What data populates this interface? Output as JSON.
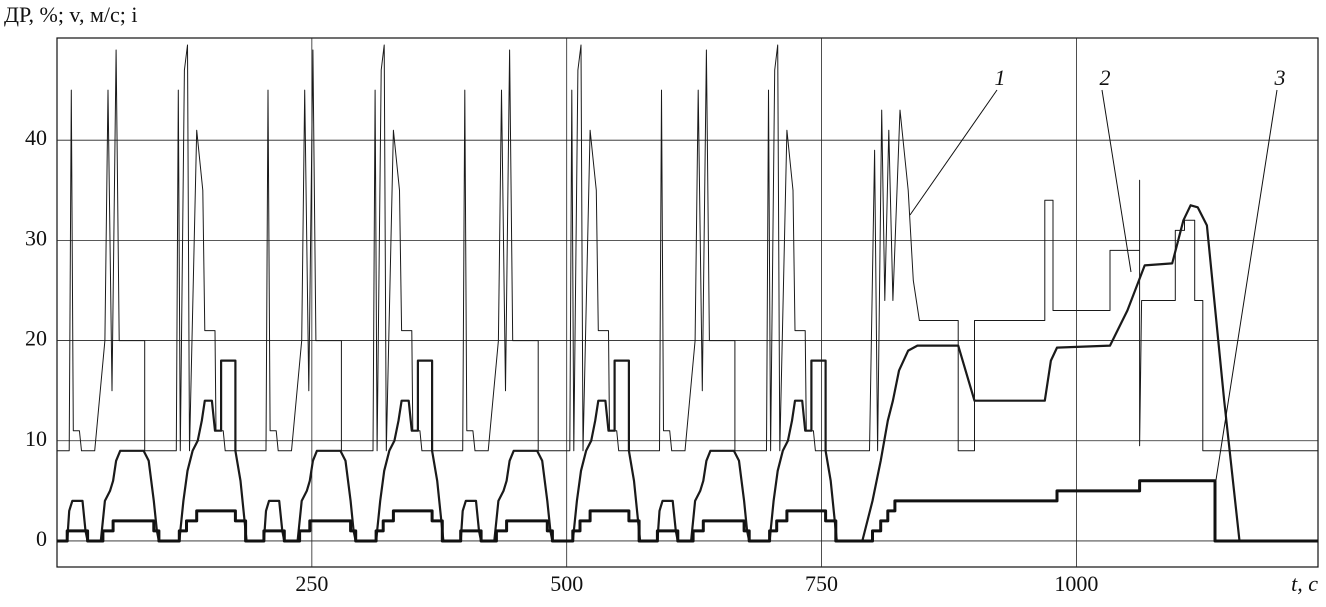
{
  "chart_data": {
    "type": "line",
    "y_label": "ДР, %; v, м/с; i",
    "x_label": "t, с",
    "xlim": [
      0,
      1237
    ],
    "ylim": [
      -2.6,
      50.2
    ],
    "xticks": [
      250,
      500,
      750,
      1000
    ],
    "yticks": [
      0,
      10,
      20,
      30,
      40
    ],
    "grid": true,
    "series": [
      {
        "name": "1",
        "color": "#1a1a1a",
        "x": [
          0,
          12,
          14,
          16,
          22,
          24,
          37,
          47,
          50,
          54,
          58,
          61,
          86,
          86,
          117,
          119,
          121,
          125,
          128,
          130,
          137,
          143,
          145,
          155,
          156,
          163,
          165,
          193,
          205,
          207,
          209,
          215,
          217,
          230,
          240,
          243,
          247,
          251,
          254,
          279,
          279,
          310,
          312,
          314,
          318,
          321,
          323,
          330,
          336,
          338,
          348,
          349,
          356,
          358,
          386,
          398,
          400,
          402,
          408,
          410,
          423,
          433,
          436,
          440,
          444,
          447,
          472,
          472,
          503,
          505,
          507,
          511,
          514,
          516,
          523,
          529,
          531,
          541,
          542,
          549,
          551,
          579,
          591,
          593,
          595,
          601,
          603,
          616,
          626,
          629,
          633,
          637,
          640,
          665,
          665,
          696,
          698,
          700,
          704,
          707,
          709,
          716,
          722,
          724,
          734,
          735,
          742,
          744,
          772,
          797,
          802,
          805,
          809,
          812,
          816,
          820,
          827,
          835,
          840,
          846,
          884,
          884,
          900,
          900,
          969,
          969,
          977,
          977,
          1033,
          1033,
          1062,
          1062,
          1062,
          1064,
          1097,
          1097,
          1106,
          1106,
          1116,
          1116,
          1124,
          1124,
          1237
        ],
        "values": [
          9,
          9,
          45,
          11,
          11,
          9,
          9,
          20,
          45,
          15,
          49,
          20,
          20,
          9,
          9,
          45,
          9,
          47,
          49.5,
          9,
          41,
          35,
          21,
          21,
          11,
          11,
          9,
          9,
          9,
          45,
          11,
          11,
          9,
          9,
          20,
          45,
          15,
          49,
          20,
          20,
          9,
          9,
          45,
          9,
          47,
          49.5,
          9,
          41,
          35,
          21,
          21,
          11,
          11,
          9,
          9,
          9,
          45,
          11,
          11,
          9,
          9,
          20,
          45,
          15,
          49,
          20,
          20,
          9,
          9,
          45,
          9,
          47,
          49.5,
          9,
          41,
          35,
          21,
          21,
          11,
          11,
          9,
          9,
          9,
          45,
          11,
          11,
          9,
          9,
          20,
          45,
          15,
          49,
          20,
          20,
          9,
          9,
          45,
          9,
          47,
          49.5,
          9,
          41,
          35,
          21,
          21,
          11,
          11,
          9,
          9,
          9,
          39,
          9,
          43,
          24,
          41,
          24,
          43,
          35,
          26,
          22,
          22,
          9,
          9,
          22,
          22,
          34,
          34,
          23,
          23,
          29,
          29,
          36,
          9.5,
          24,
          24,
          31,
          31,
          32,
          32,
          24,
          24,
          9,
          9
        ]
      },
      {
        "name": "2",
        "color": "#1a1a1a",
        "x": [
          0,
          10,
          12,
          15,
          25,
          28,
          30,
          43,
          47,
          52,
          55,
          58,
          62,
          85,
          90,
          95,
          98,
          100,
          120,
          124,
          128,
          133,
          138,
          142,
          145,
          152,
          155,
          161,
          161,
          175,
          175,
          180,
          186,
          193,
          203,
          205,
          208,
          218,
          221,
          223,
          236,
          240,
          245,
          248,
          251,
          255,
          278,
          283,
          288,
          291,
          293,
          313,
          317,
          321,
          326,
          331,
          335,
          338,
          345,
          348,
          354,
          354,
          368,
          368,
          373,
          379,
          386,
          396,
          398,
          401,
          411,
          414,
          416,
          429,
          433,
          438,
          441,
          444,
          448,
          471,
          476,
          481,
          484,
          486,
          506,
          510,
          514,
          519,
          524,
          528,
          531,
          538,
          541,
          547,
          547,
          561,
          561,
          566,
          572,
          579,
          589,
          591,
          594,
          604,
          607,
          609,
          622,
          626,
          631,
          634,
          637,
          641,
          664,
          669,
          674,
          677,
          679,
          699,
          703,
          707,
          712,
          717,
          721,
          724,
          731,
          734,
          740,
          740,
          754,
          754,
          759,
          765,
          772,
          790,
          800,
          808,
          815,
          820,
          826,
          835,
          844,
          884,
          900,
          969,
          975,
          981,
          1033,
          1050,
          1067,
          1094,
          1105,
          1112,
          1119,
          1128,
          1145,
          1160,
          1237
        ],
        "values": [
          0,
          0,
          3,
          4,
          4,
          1,
          0,
          0,
          4,
          5,
          6,
          8,
          9,
          9,
          8,
          4,
          1,
          0,
          0,
          4,
          7,
          9,
          10,
          12,
          14,
          14,
          11,
          11,
          18,
          18,
          9,
          6,
          0,
          0,
          0,
          3,
          4,
          4,
          1,
          0,
          0,
          4,
          5,
          6,
          8,
          9,
          9,
          8,
          4,
          1,
          0,
          0,
          4,
          7,
          9,
          10,
          12,
          14,
          14,
          11,
          11,
          18,
          18,
          9,
          6,
          0,
          0,
          0,
          3,
          4,
          4,
          1,
          0,
          0,
          4,
          5,
          6,
          8,
          9,
          9,
          8,
          4,
          1,
          0,
          0,
          4,
          7,
          9,
          10,
          12,
          14,
          14,
          11,
          11,
          18,
          18,
          9,
          6,
          0,
          0,
          0,
          3,
          4,
          4,
          1,
          0,
          0,
          4,
          5,
          6,
          8,
          9,
          9,
          8,
          4,
          1,
          0,
          0,
          4,
          7,
          9,
          10,
          12,
          14,
          14,
          11,
          11,
          18,
          18,
          9,
          6,
          0,
          0,
          0,
          4,
          8,
          12,
          14,
          17,
          19,
          19.5,
          19.5,
          14,
          14,
          18,
          19.3,
          19.5,
          23,
          27.5,
          27.7,
          32,
          33.5,
          33.3,
          31.5,
          14,
          0,
          0
        ]
      },
      {
        "name": "3",
        "color": "#111111",
        "x": [
          0,
          10,
          10,
          30,
          30,
          45,
          45,
          55,
          55,
          95,
          95,
          100,
          100,
          120,
          120,
          127,
          127,
          137,
          137,
          175,
          175,
          185,
          185,
          193,
          203,
          203,
          223,
          223,
          238,
          238,
          248,
          248,
          288,
          288,
          293,
          293,
          313,
          313,
          320,
          320,
          330,
          330,
          368,
          368,
          378,
          378,
          386,
          396,
          396,
          416,
          416,
          431,
          431,
          441,
          441,
          481,
          481,
          486,
          486,
          506,
          506,
          513,
          513,
          523,
          523,
          561,
          561,
          571,
          571,
          579,
          589,
          589,
          609,
          609,
          624,
          624,
          634,
          634,
          674,
          674,
          679,
          679,
          699,
          699,
          706,
          706,
          716,
          716,
          754,
          754,
          764,
          764,
          772,
          800,
          800,
          808,
          808,
          815,
          815,
          822,
          822,
          981,
          981,
          1062,
          1062,
          1136,
          1136,
          1237
        ],
        "values": [
          0,
          0,
          1,
          1,
          0,
          0,
          1,
          1,
          2,
          2,
          1,
          1,
          0,
          0,
          1,
          1,
          2,
          2,
          3,
          3,
          2,
          2,
          0,
          0,
          0,
          1,
          1,
          0,
          0,
          1,
          1,
          2,
          2,
          1,
          1,
          0,
          0,
          1,
          1,
          2,
          2,
          3,
          3,
          2,
          2,
          0,
          0,
          0,
          1,
          1,
          0,
          0,
          1,
          1,
          2,
          2,
          1,
          1,
          0,
          0,
          1,
          1,
          2,
          2,
          3,
          3,
          2,
          2,
          0,
          0,
          0,
          1,
          1,
          0,
          0,
          1,
          1,
          2,
          2,
          1,
          1,
          0,
          0,
          1,
          1,
          2,
          2,
          3,
          3,
          2,
          2,
          0,
          0,
          0,
          1,
          1,
          2,
          2,
          3,
          3,
          4,
          4,
          5,
          5,
          6,
          6,
          0,
          0
        ]
      }
    ]
  }
}
